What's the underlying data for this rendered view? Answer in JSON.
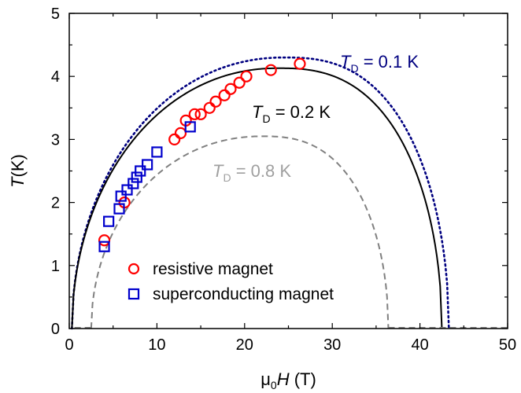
{
  "chart_data": {
    "type": "scatter",
    "xlabel": {
      "prefix": "μ",
      "sub": "0",
      "var": "H",
      "unit": " (T)"
    },
    "ylabel": {
      "var": "T",
      "unit": "(K)"
    },
    "xlim": [
      0,
      50
    ],
    "ylim": [
      0,
      5
    ],
    "xticks": [
      "0",
      "10",
      "20",
      "30",
      "40",
      "50"
    ],
    "yticks": [
      "0",
      "1",
      "2",
      "3",
      "4",
      "5"
    ],
    "grid": false,
    "legend_position": "bottom-left",
    "series": [
      {
        "name": "resistive magnet",
        "marker": "circle",
        "color": "#ff0000",
        "points": [
          [
            4.0,
            1.4
          ],
          [
            6.3,
            2.0
          ],
          [
            12.0,
            3.0
          ],
          [
            12.7,
            3.1
          ],
          [
            13.3,
            3.3
          ],
          [
            14.3,
            3.4
          ],
          [
            15.0,
            3.4
          ],
          [
            16.0,
            3.5
          ],
          [
            16.7,
            3.6
          ],
          [
            17.7,
            3.7
          ],
          [
            18.4,
            3.8
          ],
          [
            19.4,
            3.9
          ],
          [
            20.2,
            4.0
          ],
          [
            23.0,
            4.1
          ],
          [
            26.3,
            4.2
          ]
        ]
      },
      {
        "name": "superconducting magnet",
        "marker": "square",
        "color": "#0000cc",
        "points": [
          [
            4.0,
            1.3
          ],
          [
            4.5,
            1.7
          ],
          [
            5.7,
            1.9
          ],
          [
            5.9,
            2.1
          ],
          [
            6.6,
            2.2
          ],
          [
            7.3,
            2.3
          ],
          [
            7.7,
            2.4
          ],
          [
            8.1,
            2.5
          ],
          [
            8.9,
            2.6
          ],
          [
            10.0,
            2.8
          ],
          [
            13.8,
            3.2
          ]
        ]
      }
    ],
    "curves": [
      {
        "label_var": "T",
        "label_sub": "D",
        "label_rest": " = 0.1 K",
        "style": "dotted",
        "color": "#000080",
        "x_start": 0.3,
        "x_end": 43.3,
        "peak_x": 24.5,
        "peak_y": 4.3
      },
      {
        "label_var": "T",
        "label_sub": "D",
        "label_rest": " = 0.2 K",
        "style": "solid",
        "color": "#000000",
        "x_start": 0.3,
        "x_end": 42.5,
        "peak_x": 23.8,
        "peak_y": 4.13
      },
      {
        "label_var": "T",
        "label_sub": "D",
        "label_rest": " = 0.8 K",
        "style": "dashed",
        "color": "#808080",
        "x_start": 2.5,
        "x_end": 36.4,
        "peak_x": 22.0,
        "peak_y": 3.05
      }
    ]
  }
}
